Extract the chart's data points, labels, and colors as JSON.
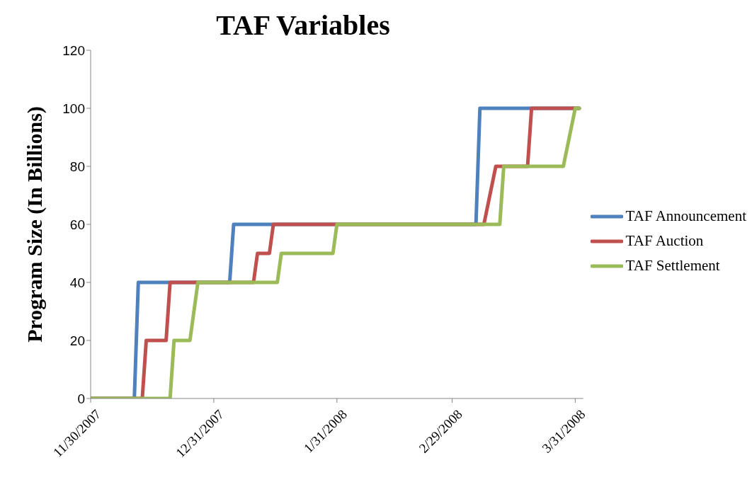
{
  "chart_data": {
    "type": "line",
    "title": "TAF Variables",
    "ylabel": "Program Size (In Billions)",
    "xlim": [
      "2007-11-30",
      "2008-04-02"
    ],
    "xticks": [
      {
        "value": "2007-11-30",
        "label": "11/30/2007"
      },
      {
        "value": "2007-12-31",
        "label": "12/31/2007"
      },
      {
        "value": "2008-01-31",
        "label": "1/31/2008"
      },
      {
        "value": "2008-02-29",
        "label": "2/29/2008"
      },
      {
        "value": "2008-03-31",
        "label": "3/31/2008"
      }
    ],
    "ylim": [
      0,
      120
    ],
    "yticks": [
      0,
      20,
      40,
      60,
      80,
      100,
      120
    ],
    "grid": false,
    "legend": "right",
    "marker": "none",
    "line_style": "solid",
    "series": [
      {
        "name": "TAF Announcement",
        "color": "#4f81bd",
        "x": [
          "2007-11-30",
          "2007-12-11",
          "2007-12-12",
          "2008-01-04",
          "2008-01-05",
          "2008-03-06",
          "2008-03-07",
          "2008-04-01"
        ],
        "values": [
          0,
          0,
          40,
          40,
          60,
          60,
          100,
          100
        ]
      },
      {
        "name": "TAF Auction",
        "color": "#c0504d",
        "x": [
          "2007-11-30",
          "2007-12-13",
          "2007-12-14",
          "2007-12-19",
          "2007-12-20",
          "2008-01-10",
          "2008-01-11",
          "2008-01-14",
          "2008-01-15",
          "2008-03-08",
          "2008-03-11",
          "2008-03-19",
          "2008-03-20",
          "2008-04-01"
        ],
        "values": [
          0,
          0,
          20,
          20,
          40,
          40,
          50,
          50,
          60,
          60,
          80,
          80,
          100,
          100
        ]
      },
      {
        "name": "TAF Settlement",
        "color": "#9bbb59",
        "x": [
          "2007-11-30",
          "2007-12-20",
          "2007-12-21",
          "2007-12-25",
          "2007-12-27",
          "2008-01-16",
          "2008-01-17",
          "2008-01-30",
          "2008-01-31",
          "2008-03-12",
          "2008-03-13",
          "2008-03-28",
          "2008-03-31",
          "2008-04-01"
        ],
        "values": [
          0,
          0,
          20,
          20,
          40,
          40,
          50,
          50,
          60,
          60,
          80,
          80,
          100,
          100
        ]
      }
    ]
  }
}
